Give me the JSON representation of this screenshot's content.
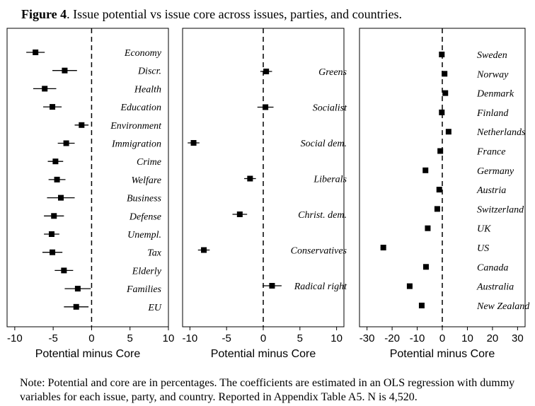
{
  "figure": {
    "label": "Figure 4",
    "caption": ". Issue potential vs issue core across issues, parties, and countries.",
    "note": "Note: Potential and core are in percentages. The coefficients are estimated in an OLS regression with dummy variables for each issue, party, and country. Reported in Appendix Table A5. N is 4,520."
  },
  "chart_data": [
    {
      "type": "scatter",
      "subtype": "coefficient-plot",
      "xlabel": "Potential minus Core",
      "xlim": [
        -11,
        10
      ],
      "xticks": [
        -10,
        -5,
        0,
        5,
        10
      ],
      "reference_line": 0,
      "categories": [
        "Economy",
        "Discr.",
        "Health",
        "Education",
        "Environment",
        "Immigration",
        "Crime",
        "Welfare",
        "Business",
        "Defense",
        "Unempl.",
        "Tax",
        "Elderly",
        "Families",
        "EU"
      ],
      "values": [
        -7.3,
        -3.5,
        -6.1,
        -5.1,
        -1.3,
        -3.3,
        -4.7,
        -4.5,
        -4.0,
        -4.9,
        -5.2,
        -5.1,
        -3.6,
        -1.8,
        -2.0
      ],
      "ci_low": [
        -8.5,
        -5.1,
        -7.6,
        -6.3,
        -2.2,
        -4.4,
        -5.7,
        -5.6,
        -5.8,
        -6.2,
        -6.2,
        -6.4,
        -4.8,
        -3.5,
        -3.6
      ],
      "ci_high": [
        -6.1,
        -1.9,
        -4.6,
        -3.9,
        -0.4,
        -2.2,
        -3.7,
        -3.4,
        -2.2,
        -3.6,
        -4.2,
        -3.8,
        -2.4,
        -0.1,
        -0.4
      ]
    },
    {
      "type": "scatter",
      "subtype": "coefficient-plot",
      "xlabel": "Potential minus Core",
      "xlim": [
        -11,
        11
      ],
      "xticks": [
        -10,
        -5,
        0,
        5,
        10
      ],
      "reference_line": 0,
      "categories": [
        "Greens",
        "Socialist",
        "Social dem.",
        "Liberals",
        "Christ. dem.",
        "Conservatives",
        "Radical right"
      ],
      "values": [
        0.4,
        0.3,
        -9.5,
        -1.8,
        -3.2,
        -8.1,
        1.2
      ],
      "ci_low": [
        -0.4,
        -0.8,
        -10.3,
        -2.6,
        -4.2,
        -8.9,
        -0.1
      ],
      "ci_high": [
        1.2,
        1.4,
        -8.7,
        -1.0,
        -2.2,
        -7.3,
        2.5
      ]
    },
    {
      "type": "scatter",
      "subtype": "coefficient-plot",
      "xlabel": "Potential minus Core",
      "xlim": [
        -33,
        33
      ],
      "xticks": [
        -30,
        -20,
        -10,
        0,
        10,
        20,
        30
      ],
      "reference_line": 0,
      "categories": [
        "Sweden",
        "Norway",
        "Denmark",
        "Finland",
        "Netherlands",
        "France",
        "Germany",
        "Austria",
        "Switzerland",
        "UK",
        "US",
        "Canada",
        "Australia",
        "New Zealand"
      ],
      "values": [
        -0.2,
        0.9,
        1.2,
        -0.2,
        2.5,
        -0.8,
        -6.7,
        -1.2,
        -2.0,
        -5.8,
        -23.5,
        -6.5,
        -13.0,
        -8.2
      ],
      "ci_low": [
        -0.8,
        0.3,
        0.6,
        -0.8,
        1.9,
        -1.4,
        -7.3,
        -1.8,
        -2.6,
        -6.4,
        -24.6,
        -7.1,
        -14.1,
        -8.8
      ],
      "ci_high": [
        0.4,
        1.5,
        1.8,
        0.4,
        3.1,
        -0.2,
        -6.1,
        -0.6,
        -1.4,
        -5.2,
        -22.4,
        -5.9,
        -11.9,
        -7.6
      ]
    }
  ]
}
